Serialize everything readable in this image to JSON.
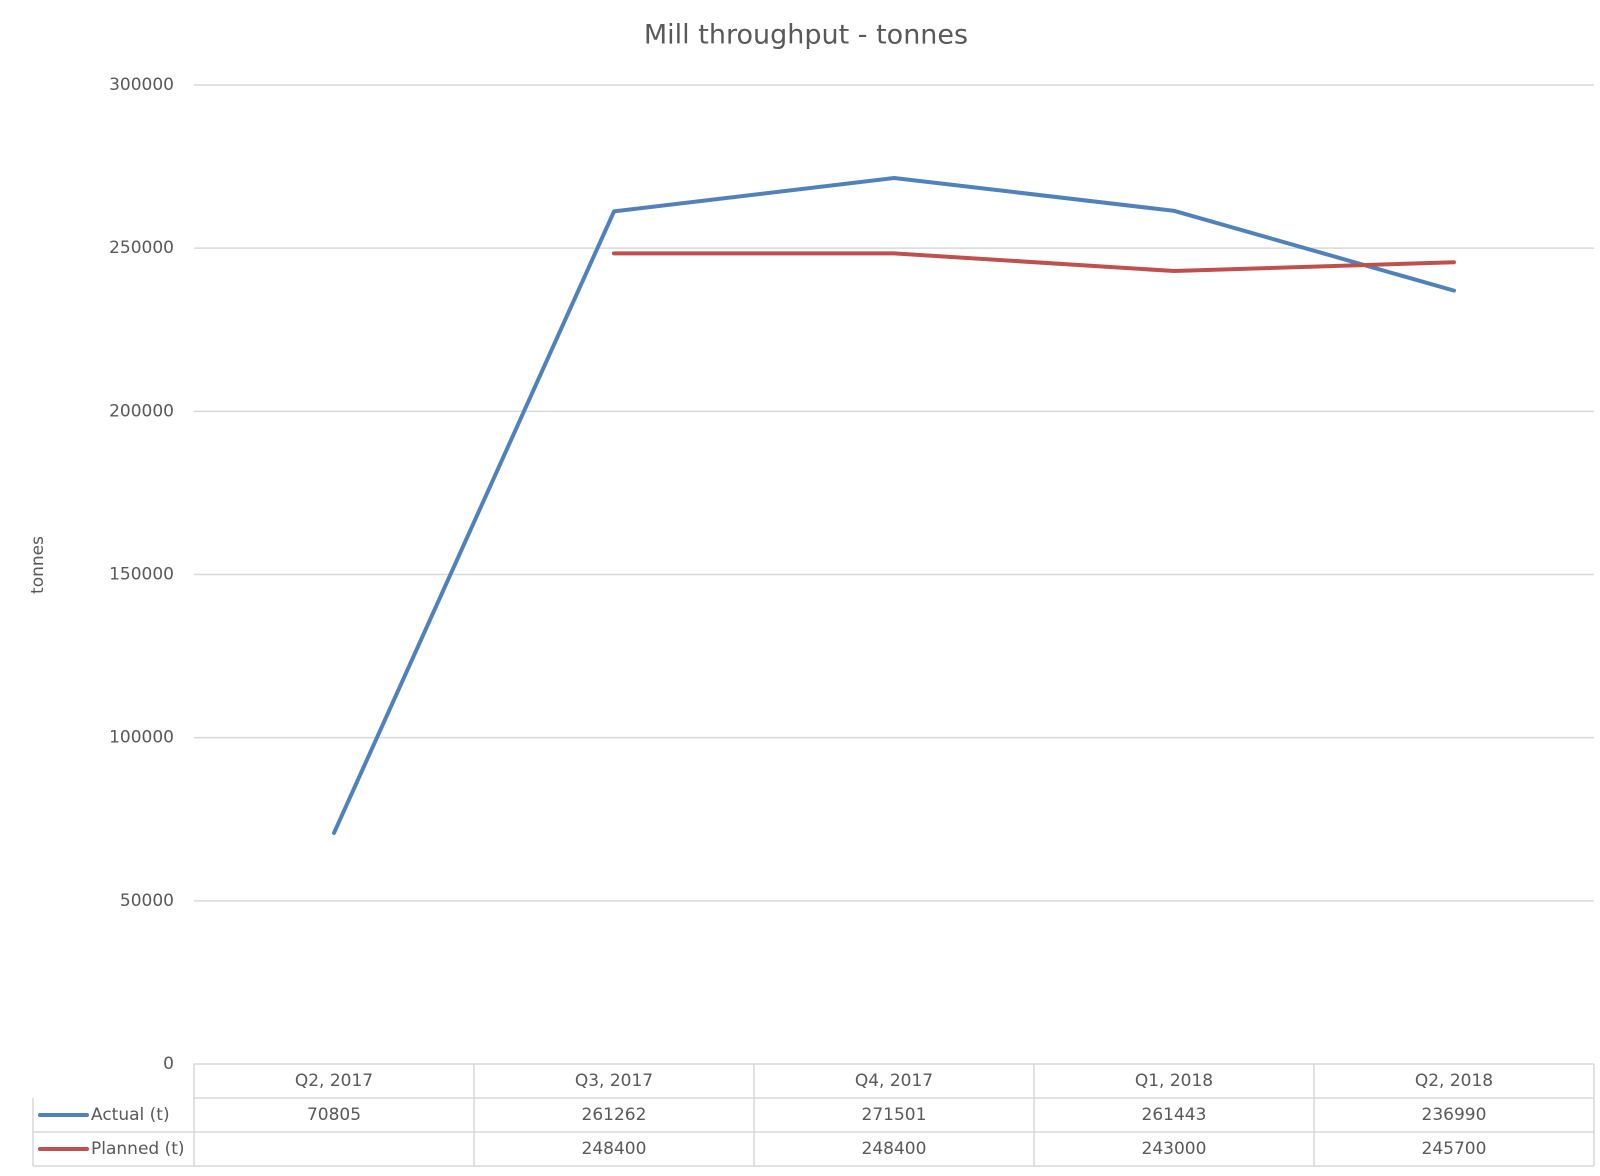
{
  "chart_data": {
    "type": "line",
    "title": "Mill throughput - tonnes",
    "y_label": "tonnes",
    "categories": [
      "Q2, 2017",
      "Q3, 2017",
      "Q4, 2017",
      "Q1, 2018",
      "Q2, 2018"
    ],
    "series": [
      {
        "name": "Actual (t)",
        "color": "#4f81bd",
        "values": [
          70805,
          261262,
          271501,
          261443,
          236990
        ]
      },
      {
        "name": "Planned (t)",
        "color": "#c0504d",
        "values": [
          null,
          248400,
          248400,
          243000,
          245700
        ]
      }
    ],
    "ylim": [
      0,
      300000
    ],
    "yticks": [
      0,
      50000,
      100000,
      150000,
      200000,
      250000,
      300000
    ],
    "grid": true,
    "data_table": true
  }
}
